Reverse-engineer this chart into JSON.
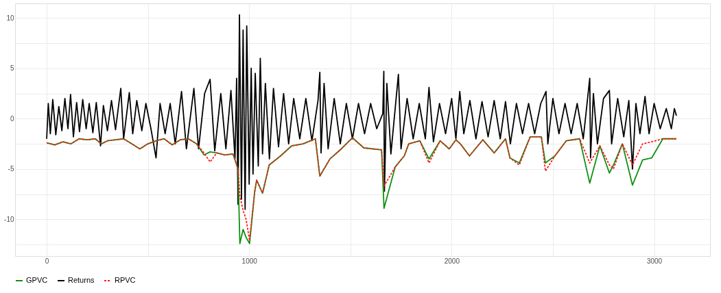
{
  "chart_data": {
    "type": "line",
    "xlim": [
      -156,
      3276
    ],
    "ylim": [
      -13.64,
      11.44
    ],
    "xticks": [
      0,
      {
        "value": 500,
        "label": null
      },
      1000,
      {
        "value": 1500,
        "label": null
      },
      2000,
      {
        "value": 2500,
        "label": null
      },
      3000
    ],
    "yticks": [
      {
        "value": -12.5,
        "label": null
      },
      -10,
      {
        "value": -7.5,
        "label": null
      },
      -5,
      {
        "value": -2.5,
        "label": null
      },
      0,
      {
        "value": 2.5,
        "label": null
      },
      5,
      {
        "value": 7.5,
        "label": null
      },
      10
    ],
    "grid": true,
    "legend": "bottom",
    "marker": "none",
    "series": [
      {
        "name": "GPVC",
        "color": "#109010",
        "line_style": "solid",
        "x": [
          0,
          40,
          80,
          120,
          160,
          200,
          240,
          270,
          300,
          340,
          380,
          420,
          460,
          500,
          540,
          580,
          620,
          660,
          700,
          740,
          777,
          807,
          840,
          880,
          920,
          945,
          954,
          970,
          985,
          1002,
          1027,
          1037,
          1066,
          1099,
          1155,
          1210,
          1266,
          1327,
          1349,
          1399,
          1455,
          1510,
          1566,
          1654,
          1666,
          1721,
          1766,
          1788,
          1843,
          1888,
          1943,
          1988,
          2021,
          2043,
          2088,
          2154,
          2210,
          2266,
          2288,
          2334,
          2388,
          2443,
          2463,
          2510,
          2566,
          2632,
          2682,
          2732,
          2779,
          2799,
          2843,
          2893,
          2943,
          2988,
          3043,
          3110
        ],
        "values": [
          -2.4,
          -2.6,
          -2.3,
          -2.5,
          -2.0,
          -2.1,
          -2.0,
          -2.5,
          -2.2,
          -2.1,
          -2.0,
          -2.5,
          -3.0,
          -2.5,
          -2.2,
          -2.0,
          -2.6,
          -2.1,
          -2.0,
          -2.5,
          -3.6,
          -3.3,
          -3.4,
          -3.6,
          -3.5,
          -5.0,
          -12.4,
          -11.0,
          -11.8,
          -12.4,
          -7.3,
          -6.1,
          -7.4,
          -4.6,
          -3.7,
          -2.7,
          -2.5,
          -2.0,
          -5.7,
          -4.0,
          -3.0,
          -1.9,
          -2.9,
          -3.1,
          -8.9,
          -4.8,
          -3.7,
          -2.5,
          -2.2,
          -4.0,
          -2.2,
          -3.0,
          -2.1,
          -2.5,
          -3.7,
          -2.1,
          -3.4,
          -2.0,
          -3.9,
          -4.4,
          -1.8,
          -1.8,
          -4.4,
          -3.7,
          -2.2,
          -2.0,
          -6.4,
          -2.7,
          -5.4,
          -4.6,
          -2.5,
          -6.6,
          -4.1,
          -3.9,
          -2.0,
          -2.0
        ]
      },
      {
        "name": "Returns",
        "color": "#000000",
        "line_style": "solid",
        "x": [
          0,
          8,
          18,
          30,
          45,
          60,
          75,
          90,
          105,
          118,
          132,
          148,
          162,
          178,
          195,
          210,
          228,
          245,
          266,
          280,
          300,
          320,
          340,
          366,
          380,
          408,
          425,
          445,
          470,
          490,
          515,
          540,
          560,
          585,
          610,
          635,
          666,
          690,
          727,
          750,
          780,
          807,
          830,
          860,
          885,
          910,
          930,
          938,
          945,
          952,
          962,
          970,
          980,
          988,
          1000,
          1010,
          1019,
          1030,
          1045,
          1055,
          1066,
          1080,
          1100,
          1120,
          1145,
          1170,
          1195,
          1220,
          1250,
          1280,
          1310,
          1340,
          1349,
          1355,
          1370,
          1390,
          1420,
          1450,
          1480,
          1510,
          1540,
          1570,
          1600,
          1630,
          1660,
          1665,
          1668,
          1680,
          1700,
          1737,
          1750,
          1780,
          1810,
          1840,
          1870,
          1888,
          1910,
          1940,
          1970,
          2000,
          2021,
          2040,
          2060,
          2090,
          2120,
          2150,
          2180,
          2210,
          2240,
          2266,
          2290,
          2320,
          2350,
          2380,
          2410,
          2440,
          2466,
          2475,
          2500,
          2530,
          2560,
          2590,
          2620,
          2650,
          2682,
          2686,
          2700,
          2720,
          2750,
          2779,
          2790,
          2820,
          2850,
          2875,
          2893,
          2910,
          2930,
          2955,
          2975,
          3000,
          3030,
          3060,
          3085,
          3100,
          3110
        ],
        "values": [
          -2.0,
          1.5,
          -1.5,
          1.9,
          -1.6,
          1.2,
          -1.2,
          2.0,
          -1.0,
          2.4,
          -1.8,
          1.6,
          -1.3,
          1.9,
          -1.0,
          1.5,
          -1.4,
          1.6,
          -2.7,
          1.3,
          -1.2,
          1.8,
          -1.1,
          3.0,
          -2.0,
          2.6,
          -1.5,
          1.8,
          -1.2,
          1.5,
          -1.0,
          -3.9,
          1.5,
          -1.5,
          1.5,
          -2.5,
          2.7,
          -3.0,
          3.0,
          -3.0,
          2.5,
          3.9,
          -3.2,
          2.5,
          -3.0,
          2.8,
          -4.0,
          4.0,
          -8.5,
          10.3,
          -8.0,
          8.8,
          -9.0,
          9.2,
          -6.5,
          5.0,
          -5.5,
          4.5,
          -4.7,
          6.0,
          -3.5,
          3.5,
          -4.0,
          3.0,
          -2.8,
          2.5,
          -2.5,
          2.0,
          -2.0,
          2.0,
          -2.2,
          1.8,
          4.6,
          -3.4,
          3.5,
          -3.0,
          2.0,
          -2.5,
          1.5,
          -2.0,
          1.5,
          -1.5,
          1.5,
          -1.0,
          0.5,
          4.7,
          -7.2,
          3.5,
          -3.5,
          4.4,
          -3.0,
          2.0,
          -2.0,
          1.5,
          -2.0,
          3.1,
          -2.3,
          1.5,
          -1.5,
          2.0,
          -2.0,
          2.7,
          -1.5,
          1.8,
          -2.0,
          1.7,
          -1.8,
          1.8,
          -2.0,
          1.7,
          -2.5,
          1.5,
          -1.5,
          1.5,
          -1.5,
          1.5,
          2.7,
          -2.5,
          2.0,
          -1.5,
          1.5,
          -1.5,
          1.5,
          -2.0,
          4.0,
          -3.9,
          2.5,
          -2.5,
          2.0,
          2.8,
          -2.5,
          2.0,
          -1.8,
          1.8,
          -5.0,
          1.5,
          -1.5,
          2.2,
          -1.5,
          1.5,
          -1.0,
          1.0,
          -1.0,
          1.0,
          0.3
        ]
      },
      {
        "name": "RPVC",
        "color": "#ff1a1a",
        "line_style": "dashed",
        "x": [
          0,
          40,
          80,
          120,
          160,
          200,
          240,
          270,
          300,
          340,
          380,
          420,
          460,
          500,
          540,
          580,
          620,
          660,
          700,
          740,
          777,
          807,
          840,
          880,
          920,
          945,
          954,
          970,
          985,
          1002,
          1027,
          1037,
          1066,
          1099,
          1155,
          1210,
          1266,
          1327,
          1349,
          1399,
          1455,
          1510,
          1566,
          1654,
          1666,
          1721,
          1766,
          1788,
          1843,
          1888,
          1943,
          1988,
          2021,
          2043,
          2088,
          2154,
          2210,
          2266,
          2288,
          2334,
          2388,
          2443,
          2463,
          2510,
          2566,
          2632,
          2682,
          2732,
          2779,
          2799,
          2843,
          2893,
          2943,
          2988,
          3043,
          3110
        ],
        "values": [
          -2.4,
          -2.6,
          -2.3,
          -2.5,
          -2.0,
          -2.1,
          -2.0,
          -2.5,
          -2.2,
          -2.1,
          -2.0,
          -2.5,
          -3.0,
          -2.5,
          -2.2,
          -2.0,
          -2.6,
          -2.1,
          -2.0,
          -2.5,
          -3.4,
          -4.3,
          -3.4,
          -3.6,
          -3.5,
          -5.0,
          -7.7,
          -9.1,
          -10.0,
          -12.1,
          -7.3,
          -6.1,
          -7.4,
          -4.6,
          -3.7,
          -2.7,
          -2.5,
          -2.0,
          -5.7,
          -4.0,
          -3.0,
          -1.9,
          -2.9,
          -3.1,
          -6.7,
          -4.8,
          -3.7,
          -2.5,
          -2.2,
          -4.4,
          -2.2,
          -3.0,
          -2.1,
          -2.5,
          -3.7,
          -2.1,
          -3.4,
          -2.0,
          -3.9,
          -4.6,
          -1.8,
          -1.8,
          -5.2,
          -3.7,
          -2.2,
          -2.0,
          -4.4,
          -2.7,
          -4.6,
          -5.0,
          -2.5,
          -4.6,
          -2.5,
          -2.3,
          -2.0,
          -2.0
        ]
      }
    ]
  }
}
